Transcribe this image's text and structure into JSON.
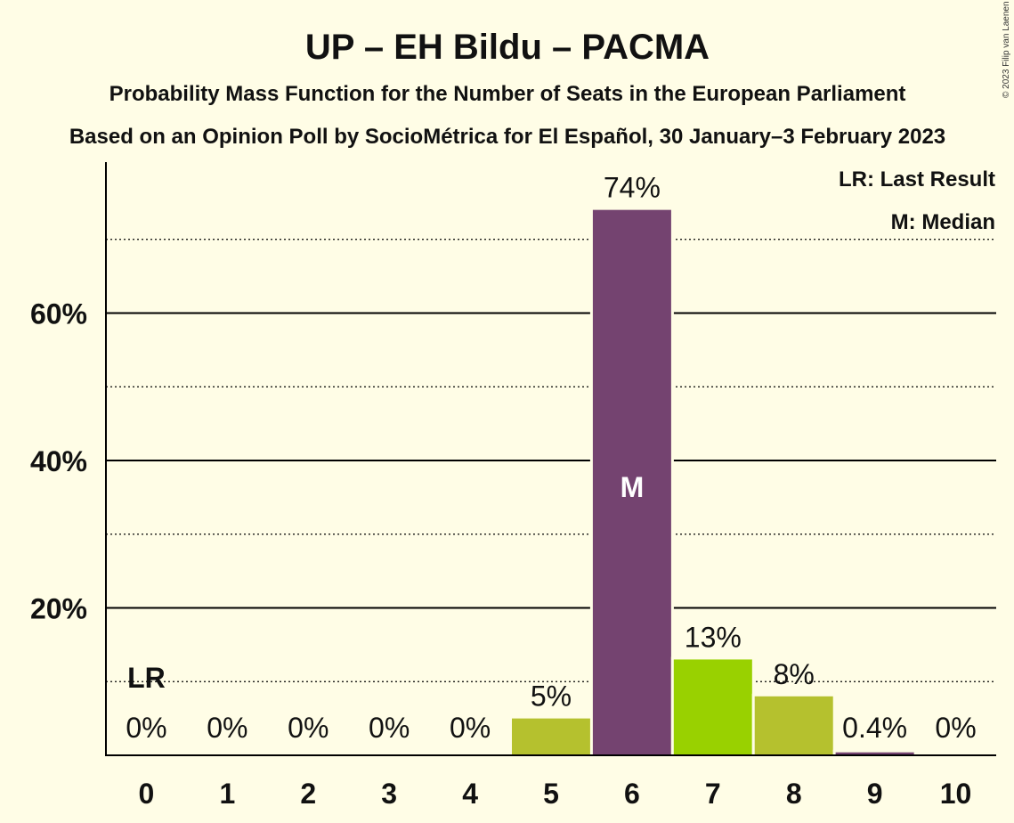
{
  "chart_data": {
    "type": "bar",
    "title": "UP – EH Bildu – PACMA",
    "subtitle": "Probability Mass Function for the Number of Seats in the European Parliament",
    "source_line": "Based on an Opinion Poll by SocioMétrica for El Español, 30 January–3 February 2023",
    "categories": [
      "0",
      "1",
      "2",
      "3",
      "4",
      "5",
      "6",
      "7",
      "8",
      "9",
      "10"
    ],
    "values": [
      0,
      0,
      0,
      0,
      0,
      5,
      74,
      13,
      8,
      0.4,
      0
    ],
    "value_labels": [
      "0%",
      "0%",
      "0%",
      "0%",
      "0%",
      "5%",
      "74%",
      "13%",
      "8%",
      "0.4%",
      "0%"
    ],
    "bar_colors": [
      "#B5C12E",
      "#B5C12E",
      "#B5C12E",
      "#B5C12E",
      "#B5C12E",
      "#B5C12E",
      "#744370",
      "#99D100",
      "#B5C12E",
      "#744370",
      "#B5C12E"
    ],
    "yticks": [
      20,
      40,
      60
    ],
    "ytick_labels": [
      "20%",
      "40%",
      "60%"
    ],
    "minor_gridlines": [
      10,
      30,
      50,
      70
    ],
    "ylim": [
      0,
      80
    ],
    "last_result_index": 0,
    "last_result_label": "LR",
    "median_index": 6,
    "median_label": "M",
    "legend": [
      "LR: Last Result",
      "M: Median"
    ],
    "legend_position": "top-right",
    "copyright": "© 2023 Filip van Laenen"
  }
}
